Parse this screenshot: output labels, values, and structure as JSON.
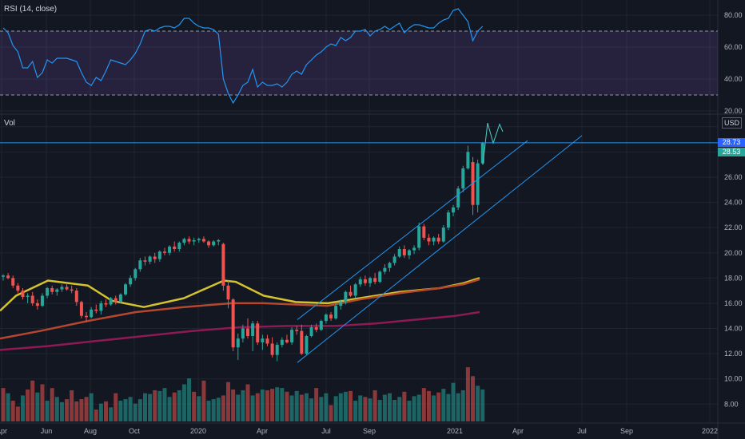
{
  "rsi_pane": {
    "title": "RSI (14, close)"
  },
  "volume_pane": {
    "title": "Vol"
  },
  "currency": "USD",
  "price_badges": {
    "last_price": "28.73",
    "close_price": "28.53"
  },
  "colors": {
    "background": "#131722",
    "up": "#26a69a",
    "down": "#ef5350",
    "rsi_line": "#2196f3",
    "rsi_band": "#7e57c2",
    "ma_fast": "#d4c22e",
    "ma_mid": "#b5472f",
    "ma_slow": "#8e1a55",
    "channel": "#2196f3",
    "last_price_badge": "#2962ff",
    "close_price_badge": "#26a69a"
  },
  "chart_data": [
    {
      "type": "line",
      "name": "RSI",
      "title": "RSI (14, close)",
      "ylim": [
        18,
        87
      ],
      "y_ticks": [
        "80.00",
        "60.00",
        "40.00",
        "20.00"
      ],
      "levels": [
        70,
        30
      ],
      "x": [
        "2019-03-20",
        "2019-03-27",
        "2019-04-03",
        "2019-04-10",
        "2019-04-17",
        "2019-04-24",
        "2019-05-01",
        "2019-05-08",
        "2019-05-15",
        "2019-05-22",
        "2019-05-29",
        "2019-06-05",
        "2019-06-12",
        "2019-06-19",
        "2019-06-26",
        "2019-07-03",
        "2019-07-10",
        "2019-07-17",
        "2019-07-24",
        "2019-07-31",
        "2019-08-07",
        "2019-08-14",
        "2019-08-21",
        "2019-08-28",
        "2019-09-04",
        "2019-09-11",
        "2019-09-18",
        "2019-09-25",
        "2019-10-02",
        "2019-10-09",
        "2019-10-16",
        "2019-10-23",
        "2019-10-30",
        "2019-11-06",
        "2019-11-13",
        "2019-11-20",
        "2019-11-27",
        "2019-12-04",
        "2019-12-11",
        "2019-12-18",
        "2019-12-25",
        "2020-01-01",
        "2020-01-08",
        "2020-01-15",
        "2020-01-22",
        "2020-01-29",
        "2020-02-05",
        "2020-02-12",
        "2020-02-19",
        "2020-02-26",
        "2020-03-04",
        "2020-03-11",
        "2020-03-18",
        "2020-03-25",
        "2020-04-01",
        "2020-04-08",
        "2020-04-15",
        "2020-04-22",
        "2020-04-29",
        "2020-05-06",
        "2020-05-13",
        "2020-05-20",
        "2020-05-27",
        "2020-06-03",
        "2020-06-10",
        "2020-06-17",
        "2020-06-24",
        "2020-07-01",
        "2020-07-08",
        "2020-07-15",
        "2020-07-22",
        "2020-07-29",
        "2020-08-05",
        "2020-08-12",
        "2020-08-19",
        "2020-08-26",
        "2020-09-02",
        "2020-09-09",
        "2020-09-16",
        "2020-09-23",
        "2020-09-30",
        "2020-10-07",
        "2020-10-14",
        "2020-10-21",
        "2020-10-28",
        "2020-11-04",
        "2020-11-11",
        "2020-11-18",
        "2020-11-25",
        "2020-12-02",
        "2020-12-09",
        "2020-12-16",
        "2020-12-23",
        "2020-12-30",
        "2021-01-06",
        "2021-01-13",
        "2021-01-20",
        "2021-01-27",
        "2021-02-03"
      ],
      "y": [
        72,
        69,
        61,
        57,
        47,
        47,
        51,
        41,
        44,
        52,
        50,
        53,
        53,
        53,
        52,
        51,
        44,
        38,
        36,
        41,
        39,
        45,
        52,
        51,
        50,
        49,
        52,
        56,
        62,
        70,
        71,
        70,
        72,
        73,
        73,
        72,
        74,
        78,
        78,
        75,
        73,
        72,
        72,
        71,
        68,
        40,
        31,
        25,
        30,
        36,
        38,
        46,
        35,
        38,
        36,
        36,
        37,
        35,
        38,
        43,
        45,
        43,
        49,
        52,
        55,
        57,
        60,
        62,
        61,
        66,
        64,
        66,
        70,
        70,
        71,
        67,
        70,
        71,
        73,
        71,
        73,
        75,
        69,
        72,
        74,
        74,
        73,
        72,
        72,
        75,
        77,
        78,
        83,
        84,
        80,
        76,
        64,
        70,
        73
      ]
    },
    {
      "type": "candlestick",
      "name": "Price",
      "ylim": [
        6.5,
        31.0
      ],
      "y_ticks": [
        "8.00",
        "10.00",
        "12.00",
        "14.00",
        "16.00",
        "18.00",
        "20.00",
        "22.00",
        "24.00",
        "26.00"
      ],
      "x_ticks": [
        "Apr",
        "Jun",
        "Aug",
        "Oct",
        "2020",
        "Apr",
        "Jul",
        "Sep",
        "2021",
        "Apr",
        "Jul",
        "Sep",
        "2022"
      ],
      "candles": [
        [
          18.1,
          18.3,
          17.8,
          18.2
        ],
        [
          18.2,
          18.4,
          17.9,
          18.0
        ],
        [
          18.0,
          18.2,
          17.2,
          17.4
        ],
        [
          17.4,
          17.6,
          16.8,
          17.0
        ],
        [
          17.0,
          17.2,
          16.3,
          16.5
        ],
        [
          16.5,
          16.8,
          16.0,
          16.6
        ],
        [
          16.6,
          16.9,
          15.8,
          16.0
        ],
        [
          16.0,
          16.3,
          15.5,
          15.8
        ],
        [
          15.8,
          16.8,
          15.7,
          16.6
        ],
        [
          16.6,
          17.3,
          16.4,
          17.2
        ],
        [
          17.2,
          17.4,
          16.7,
          16.9
        ],
        [
          16.9,
          17.2,
          16.6,
          17.1
        ],
        [
          17.1,
          17.5,
          16.9,
          17.3
        ],
        [
          17.3,
          17.6,
          17.0,
          17.1
        ],
        [
          17.1,
          17.4,
          16.8,
          17.0
        ],
        [
          17.0,
          17.2,
          15.8,
          16.1
        ],
        [
          16.1,
          16.2,
          14.8,
          15.0
        ],
        [
          15.0,
          15.3,
          14.5,
          14.9
        ],
        [
          14.9,
          15.7,
          14.8,
          15.5
        ],
        [
          15.5,
          15.9,
          15.2,
          15.4
        ],
        [
          15.4,
          16.2,
          15.1,
          16.0
        ],
        [
          16.0,
          16.3,
          15.7,
          15.9
        ],
        [
          15.9,
          16.5,
          15.8,
          16.4
        ],
        [
          16.4,
          16.6,
          15.9,
          16.1
        ],
        [
          16.1,
          16.8,
          16.0,
          16.7
        ],
        [
          16.7,
          17.6,
          16.6,
          17.5
        ],
        [
          17.5,
          18.2,
          17.3,
          18.0
        ],
        [
          18.0,
          18.8,
          17.8,
          18.7
        ],
        [
          18.7,
          19.6,
          18.5,
          19.4
        ],
        [
          19.4,
          19.7,
          19.0,
          19.3
        ],
        [
          19.3,
          19.8,
          19.1,
          19.7
        ],
        [
          19.7,
          20.0,
          19.2,
          19.5
        ],
        [
          19.5,
          20.2,
          19.3,
          20.1
        ],
        [
          20.1,
          20.4,
          19.8,
          20.0
        ],
        [
          20.0,
          20.6,
          19.8,
          20.5
        ],
        [
          20.5,
          20.9,
          20.1,
          20.3
        ],
        [
          20.3,
          20.9,
          20.1,
          20.8
        ],
        [
          20.8,
          21.2,
          20.6,
          21.1
        ],
        [
          21.1,
          21.3,
          20.7,
          20.9
        ],
        [
          20.9,
          21.2,
          20.6,
          21.0
        ],
        [
          21.0,
          21.2,
          20.8,
          21.1
        ],
        [
          21.1,
          21.3,
          20.8,
          20.9
        ],
        [
          20.9,
          21.0,
          20.4,
          20.6
        ],
        [
          20.6,
          21.0,
          20.5,
          20.9
        ],
        [
          20.9,
          21.1,
          20.6,
          21.0
        ],
        [
          20.7,
          20.8,
          17.0,
          17.4
        ],
        [
          17.4,
          17.8,
          15.6,
          16.3
        ],
        [
          16.3,
          16.4,
          12.2,
          12.5
        ],
        [
          12.5,
          13.6,
          11.5,
          13.2
        ],
        [
          13.2,
          14.3,
          12.9,
          14.0
        ],
        [
          14.0,
          14.8,
          13.2,
          13.4
        ],
        [
          13.4,
          14.6,
          12.2,
          14.4
        ],
        [
          14.4,
          14.6,
          12.7,
          12.9
        ],
        [
          12.9,
          13.5,
          12.3,
          13.2
        ],
        [
          13.2,
          13.5,
          12.6,
          12.8
        ],
        [
          12.8,
          13.3,
          11.7,
          11.9
        ],
        [
          11.9,
          12.9,
          11.4,
          12.7
        ],
        [
          12.7,
          13.3,
          12.5,
          13.1
        ],
        [
          13.1,
          13.5,
          12.8,
          12.9
        ],
        [
          12.9,
          14.1,
          12.7,
          13.9
        ],
        [
          13.9,
          14.2,
          13.5,
          13.8
        ],
        [
          13.8,
          14.3,
          11.9,
          12.0
        ],
        [
          12.0,
          13.5,
          11.9,
          13.4
        ],
        [
          13.4,
          14.3,
          13.3,
          14.1
        ],
        [
          14.1,
          14.4,
          13.7,
          13.9
        ],
        [
          13.9,
          14.7,
          13.8,
          14.6
        ],
        [
          14.6,
          15.2,
          14.4,
          15.1
        ],
        [
          15.1,
          15.3,
          14.6,
          14.8
        ],
        [
          14.8,
          16.0,
          14.7,
          15.8
        ],
        [
          15.8,
          16.3,
          15.5,
          16.1
        ],
        [
          16.1,
          17.0,
          15.9,
          16.9
        ],
        [
          16.9,
          17.4,
          16.5,
          16.6
        ],
        [
          16.6,
          17.6,
          16.4,
          17.5
        ],
        [
          17.5,
          18.1,
          17.3,
          17.9
        ],
        [
          17.9,
          18.2,
          17.4,
          17.6
        ],
        [
          17.6,
          18.1,
          17.3,
          18.0
        ],
        [
          18.0,
          18.4,
          17.5,
          17.7
        ],
        [
          17.7,
          18.6,
          17.6,
          18.5
        ],
        [
          18.5,
          19.1,
          18.3,
          18.8
        ],
        [
          18.8,
          19.3,
          18.5,
          19.2
        ],
        [
          19.2,
          19.9,
          19.0,
          19.7
        ],
        [
          19.7,
          20.5,
          19.6,
          20.3
        ],
        [
          20.3,
          20.6,
          19.6,
          19.8
        ],
        [
          19.8,
          20.3,
          19.5,
          20.2
        ],
        [
          20.2,
          20.6,
          19.9,
          20.4
        ],
        [
          20.4,
          22.4,
          20.2,
          22.1
        ],
        [
          22.1,
          22.3,
          21.0,
          21.2
        ],
        [
          21.2,
          21.5,
          20.6,
          20.9
        ],
        [
          20.9,
          21.3,
          20.6,
          21.2
        ],
        [
          21.2,
          21.5,
          20.7,
          20.9
        ],
        [
          20.9,
          22.2,
          20.8,
          22.0
        ],
        [
          22.0,
          23.4,
          21.8,
          23.2
        ],
        [
          23.2,
          23.8,
          22.9,
          23.6
        ],
        [
          23.6,
          25.3,
          23.4,
          25.1
        ],
        [
          25.1,
          26.9,
          24.8,
          26.7
        ],
        [
          26.7,
          28.5,
          26.6,
          28.0
        ],
        [
          27.2,
          27.6,
          23.0,
          23.8
        ],
        [
          23.8,
          27.4,
          23.2,
          27.1
        ],
        [
          27.1,
          28.8,
          27.0,
          28.73
        ]
      ],
      "moving_averages": [
        {
          "name": "MA fast",
          "points": [
            [
              0,
              15.4
            ],
            [
              20,
              16.6
            ],
            [
              60,
              17.8
            ],
            [
              110,
              17.4
            ],
            [
              140,
              16.2
            ],
            [
              180,
              15.7
            ],
            [
              230,
              16.4
            ],
            [
              280,
              17.8
            ],
            [
              295,
              17.7
            ],
            [
              330,
              16.6
            ],
            [
              370,
              16.1
            ],
            [
              410,
              16.0
            ],
            [
              450,
              16.4
            ],
            [
              500,
              16.9
            ],
            [
              550,
              17.2
            ],
            [
              580,
              17.6
            ],
            [
              600,
              18.0
            ]
          ]
        },
        {
          "name": "MA mid",
          "points": [
            [
              0,
              13.2
            ],
            [
              50,
              13.8
            ],
            [
              110,
              14.6
            ],
            [
              170,
              15.3
            ],
            [
              230,
              15.7
            ],
            [
              290,
              16.0
            ],
            [
              330,
              16.0
            ],
            [
              370,
              15.9
            ],
            [
              410,
              15.8
            ],
            [
              450,
              16.3
            ],
            [
              500,
              16.8
            ],
            [
              550,
              17.2
            ],
            [
              580,
              17.5
            ],
            [
              600,
              17.9
            ]
          ]
        },
        {
          "name": "MA slow",
          "points": [
            [
              0,
              12.3
            ],
            [
              60,
              12.6
            ],
            [
              120,
              13.0
            ],
            [
              180,
              13.4
            ],
            [
              240,
              13.8
            ],
            [
              300,
              14.1
            ],
            [
              360,
              14.2
            ],
            [
              420,
              14.2
            ],
            [
              470,
              14.4
            ],
            [
              520,
              14.7
            ],
            [
              570,
              15.0
            ],
            [
              600,
              15.3
            ]
          ]
        }
      ],
      "channel_lines": [
        {
          "from": [
            372,
            14.7
          ],
          "to": [
            660,
            28.9
          ]
        },
        {
          "from": [
            372,
            11.3
          ],
          "to": [
            728,
            29.3
          ]
        }
      ],
      "forecast_path": [
        [
          604,
          27.0
        ],
        [
          610,
          30.3
        ],
        [
          617,
          28.7
        ],
        [
          625,
          30.2
        ],
        [
          629,
          29.6
        ]
      ],
      "last_price_line": 28.73
    },
    {
      "type": "bar",
      "name": "Volume",
      "title": "Vol",
      "ylim": [
        0,
        100
      ],
      "values": [
        45,
        38,
        28,
        20,
        35,
        43,
        55,
        39,
        50,
        28,
        45,
        33,
        26,
        30,
        42,
        27,
        30,
        33,
        38,
        16,
        24,
        27,
        19,
        38,
        28,
        30,
        33,
        24,
        30,
        38,
        37,
        42,
        41,
        45,
        33,
        39,
        42,
        50,
        58,
        40,
        34,
        55,
        28,
        30,
        32,
        35,
        53,
        43,
        36,
        42,
        50,
        35,
        38,
        43,
        42,
        44,
        46,
        45,
        40,
        35,
        41,
        36,
        38,
        31,
        45,
        33,
        38,
        22,
        34,
        38,
        40,
        41,
        28,
        35,
        33,
        31,
        42,
        29,
        36,
        38,
        29,
        33,
        40,
        28,
        34,
        36,
        45,
        41,
        35,
        39,
        44,
        37,
        52,
        38,
        42,
        73,
        61,
        48,
        43
      ],
      "down": [
        true,
        false,
        true,
        true,
        false,
        true,
        true,
        false,
        true,
        false,
        true,
        false,
        false,
        true,
        true,
        true,
        true,
        true,
        false,
        true,
        false,
        true,
        false,
        true,
        false,
        false,
        false,
        false,
        false,
        false,
        false,
        true,
        false,
        false,
        false,
        true,
        false,
        false,
        false,
        true,
        false,
        true,
        false,
        false,
        false,
        true,
        true,
        true,
        false,
        false,
        true,
        false,
        true,
        false,
        true,
        true,
        false,
        false,
        true,
        false,
        false,
        true,
        false,
        false,
        true,
        false,
        false,
        true,
        false,
        false,
        false,
        true,
        false,
        false,
        true,
        false,
        true,
        false,
        false,
        false,
        false,
        false,
        true,
        false,
        false,
        false,
        true,
        true,
        false,
        true,
        false,
        false,
        false,
        false,
        false,
        true,
        true,
        false,
        false
      ]
    }
  ]
}
